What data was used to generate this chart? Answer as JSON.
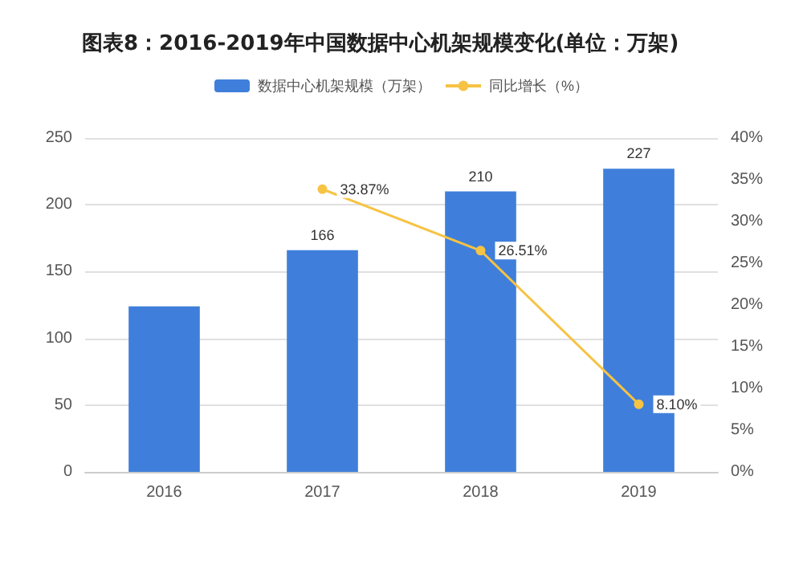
{
  "chart_data": {
    "type": "bar",
    "title": "图表8：2016-2019年中国数据中心机架规模变化(单位：万架)",
    "categories": [
      "2016",
      "2017",
      "2018",
      "2019"
    ],
    "series": [
      {
        "name": "数据中心机架规模（万架）",
        "color": "#3f7fdb",
        "values": [
          124,
          166,
          210,
          227
        ],
        "value_labels": [
          null,
          "166",
          "210",
          "227"
        ]
      },
      {
        "name": "同比增长（%）",
        "type": "line",
        "axis": "y2",
        "color": "#f6c344",
        "values": [
          null,
          33.87,
          26.51,
          8.1
        ],
        "value_labels": [
          null,
          "33.87%",
          "26.51%",
          "8.10%"
        ]
      }
    ],
    "ylim": [
      0,
      250
    ],
    "yticks": [
      0,
      50,
      100,
      150,
      200,
      250
    ],
    "y2lim": [
      0,
      40
    ],
    "y2ticks": [
      {
        "value": 0,
        "label": "0%"
      },
      {
        "value": 5,
        "label": "5%"
      },
      {
        "value": 10,
        "label": "10%"
      },
      {
        "value": 15,
        "label": "15%"
      },
      {
        "value": 20,
        "label": "20%"
      },
      {
        "value": 25,
        "label": "25%"
      },
      {
        "value": 30,
        "label": "30%"
      },
      {
        "value": 35,
        "label": "35%"
      },
      {
        "value": 40,
        "label": "40%"
      }
    ],
    "grid": "y",
    "legend": "top",
    "marker": "circle"
  }
}
